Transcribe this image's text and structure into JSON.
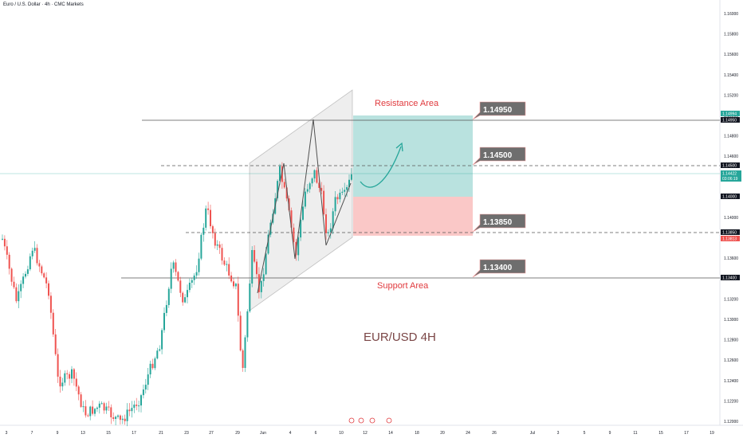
{
  "header": {
    "title": "Euro / U.S. Dollar · 4h · CMC Markets"
  },
  "colors": {
    "up": "#26a69a",
    "down": "#ef5350",
    "support_resistance_line": "#555555",
    "resistance_text": "#e03a3e",
    "target_zone": "#26a69a",
    "stop_zone": "#ef5350",
    "callout_bg": "#6e6e6e",
    "current_price": "#26a69a"
  },
  "y_axis": {
    "ticks": [
      "1.16000",
      "1.15800",
      "1.15600",
      "1.15400",
      "1.15200",
      "1.15000",
      "1.14800",
      "1.14600",
      "1.14400",
      "1.14200",
      "1.14000",
      "1.13800",
      "1.13600",
      "1.13400",
      "1.13200",
      "1.13000",
      "1.12800",
      "1.12600",
      "1.12400",
      "1.12200",
      "1.12000"
    ],
    "tags": {
      "high1": "1.14994",
      "high2": "1.14950",
      "level_1_14500": "1.14500",
      "current_price": "1.14422",
      "countdown": "03:06:19",
      "level_1_14000": "1.14000",
      "level_1_13850": "1.13850",
      "level_1_13813": "1.13813",
      "level_1_13400": "1.13400"
    }
  },
  "x_axis": {
    "ticks": [
      "3",
      "7",
      "9",
      "13",
      "15",
      "17",
      "21",
      "23",
      "27",
      "29",
      "Jun",
      "4",
      "6",
      "10",
      "12",
      "14",
      "18",
      "20",
      "24",
      "26",
      "Jul",
      "3",
      "5",
      "9",
      "11",
      "15",
      "17",
      "19"
    ]
  },
  "annotations": {
    "resistance_area": "Resistance Area",
    "support_area": "Support Area",
    "pair": "EUR/USD 4H",
    "callouts": [
      "1.14950",
      "1.14500",
      "1.13850",
      "1.13400"
    ]
  },
  "chart_data": {
    "type": "candlestick",
    "title": "Euro / U.S. Dollar · 4h · CMC Markets",
    "ylim": [
      1.1185,
      1.161
    ],
    "price_levels": [
      1.1495,
      1.145,
      1.1385,
      1.134
    ],
    "long_position": {
      "entry": 1.14,
      "target": 1.14994,
      "stop": 1.13813
    },
    "current_price": 1.14422
  }
}
